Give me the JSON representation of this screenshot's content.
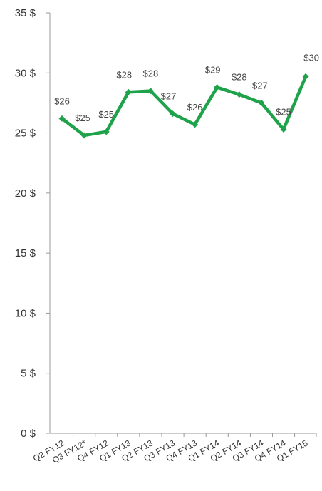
{
  "chart_data": {
    "type": "line",
    "title": "",
    "xlabel": "",
    "ylabel": "",
    "ylim": [
      0,
      35
    ],
    "grid": false,
    "legend": "none",
    "y_ticks": [
      0,
      5,
      10,
      15,
      20,
      25,
      30,
      35
    ],
    "y_tick_labels": [
      "0 $",
      "5 $",
      "10 $",
      "15 $",
      "20 $",
      "25 $",
      "30 $",
      "35 $"
    ],
    "categories": [
      "Q2 FY12",
      "Q3 FY12*",
      "Q4 FY12",
      "Q1 FY13",
      "Q2 FY13",
      "Q3 FY13",
      "Q4 FY13",
      "Q1 FY14",
      "Q2 FY14",
      "Q3 FY14",
      "Q4 FY14",
      "Q1 FY15"
    ],
    "series": [
      {
        "color": "#1fa34a",
        "values": [
          26.2,
          24.8,
          25.1,
          28.4,
          28.5,
          26.6,
          25.7,
          28.8,
          28.2,
          27.5,
          25.3,
          29.7
        ],
        "labels": [
          "$26",
          "$25",
          "$25",
          "$28",
          "$28",
          "$27",
          "$26",
          "$29",
          "$28",
          "$27",
          "$25",
          "$30"
        ]
      }
    ]
  }
}
